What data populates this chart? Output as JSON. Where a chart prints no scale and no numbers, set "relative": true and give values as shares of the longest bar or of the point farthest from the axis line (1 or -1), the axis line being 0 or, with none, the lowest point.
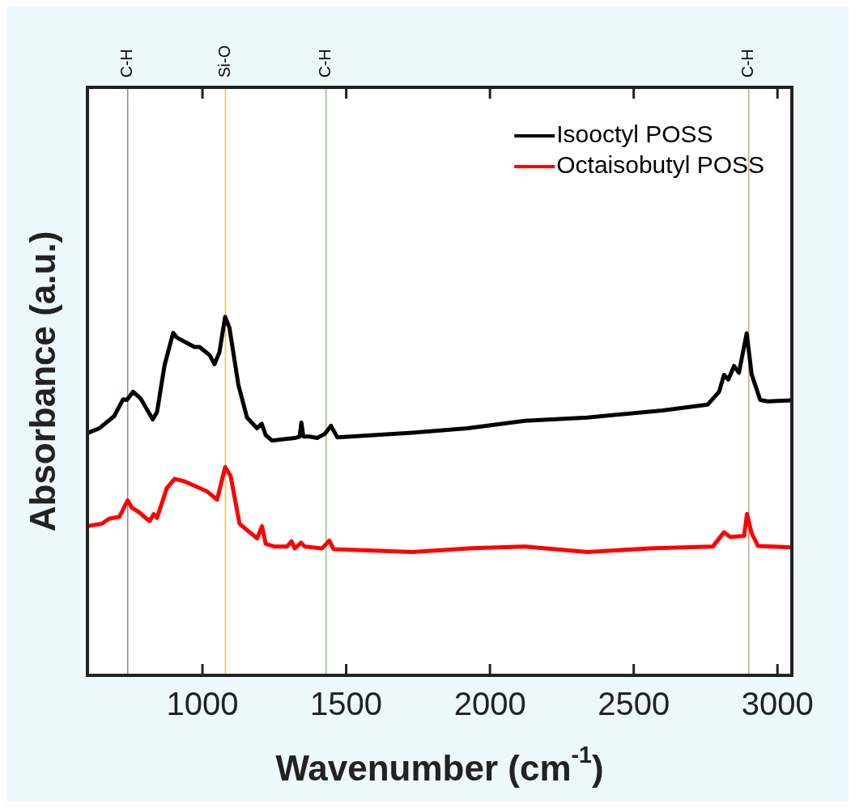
{
  "chart_data": {
    "type": "line",
    "xlabel": "Wavenumber (cm$^{-1}$)",
    "ylabel": "Absorbance (a.u.)",
    "relative": true,
    "xlim": [
      600,
      3050
    ],
    "xticks": [
      1000,
      1500,
      2000,
      2500,
      3000
    ],
    "legend": "top right",
    "line_style": "solid",
    "marker": "none",
    "series": [
      {
        "name": "Isooctyl POSS",
        "color": "#000000",
        "x": [
          600,
          641,
          693,
          724,
          737,
          759,
          785,
          827,
          842,
          868,
          898,
          911,
          946,
          972,
          990,
          1025,
          1042,
          1059,
          1079,
          1094,
          1125,
          1155,
          1190,
          1206,
          1220,
          1242,
          1277,
          1321,
          1338,
          1344,
          1351,
          1373,
          1399,
          1425,
          1447,
          1469,
          1538,
          1730,
          1922,
          2122,
          2339,
          2600,
          2757,
          2797,
          2814,
          2829,
          2849,
          2866,
          2893,
          2910,
          2940,
          2966,
          3045
        ],
        "values": [
          0.676,
          0.689,
          0.723,
          0.77,
          0.768,
          0.791,
          0.772,
          0.714,
          0.734,
          0.864,
          0.955,
          0.942,
          0.927,
          0.916,
          0.916,
          0.893,
          0.868,
          0.901,
          1.0,
          0.969,
          0.81,
          0.719,
          0.689,
          0.702,
          0.67,
          0.655,
          0.658,
          0.662,
          0.666,
          0.705,
          0.666,
          0.666,
          0.662,
          0.673,
          0.696,
          0.664,
          0.667,
          0.677,
          0.689,
          0.71,
          0.719,
          0.739,
          0.755,
          0.791,
          0.838,
          0.825,
          0.863,
          0.844,
          0.954,
          0.84,
          0.768,
          0.764,
          0.767
        ]
      },
      {
        "name": "Octaisobutyl POSS",
        "color": "#ff0000",
        "x": [
          600,
          650,
          676,
          711,
          740,
          755,
          781,
          816,
          831,
          842,
          876,
          903,
          938,
          1016,
          1051,
          1079,
          1098,
          1129,
          1151,
          1190,
          1207,
          1220,
          1251,
          1294,
          1310,
          1321,
          1343,
          1356,
          1416,
          1441,
          1456,
          1730,
          1940,
          2122,
          2339,
          2574,
          2775,
          2814,
          2836,
          2884,
          2894,
          2910,
          2932,
          3045
        ],
        "values": [
          0.416,
          0.423,
          0.437,
          0.442,
          0.488,
          0.467,
          0.454,
          0.43,
          0.45,
          0.439,
          0.522,
          0.548,
          0.541,
          0.513,
          0.49,
          0.581,
          0.556,
          0.423,
          0.408,
          0.382,
          0.416,
          0.367,
          0.359,
          0.359,
          0.374,
          0.354,
          0.37,
          0.359,
          0.354,
          0.376,
          0.352,
          0.344,
          0.355,
          0.359,
          0.344,
          0.355,
          0.359,
          0.399,
          0.386,
          0.389,
          0.45,
          0.397,
          0.361,
          0.357
        ]
      }
    ],
    "ref_lines": [
      {
        "axis": "x",
        "value": 740,
        "label": "C-H",
        "color": "#9b7bbf"
      },
      {
        "axis": "x",
        "value": 1080,
        "label": "Si-O",
        "color": "#e6c24a"
      },
      {
        "axis": "x",
        "value": 1430,
        "label": "C-H",
        "color": "#93bf80"
      },
      {
        "axis": "x",
        "value": 2900,
        "label": "C-H",
        "color": "#dc9c80"
      }
    ]
  }
}
